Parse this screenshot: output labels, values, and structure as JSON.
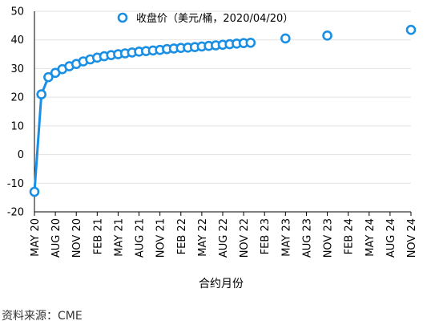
{
  "chart_data": {
    "type": "line",
    "legend": "收盘价（美元/桶，2020/04/20）",
    "xlabel": "合约月份",
    "ylabel": "",
    "ylim": [
      -20,
      50
    ],
    "y_ticks": [
      50,
      40,
      30,
      20,
      10,
      0,
      -10,
      -20
    ],
    "x_tick_labels": [
      "MAY 20",
      "AUG 20",
      "NOV 20",
      "FEB 21",
      "MAY 21",
      "AUG 21",
      "NOV 21",
      "FEB 22",
      "MAY 22",
      "AUG 22",
      "NOV 22",
      "FEB 23",
      "MAY 23",
      "AUG 23",
      "NOV 23",
      "FEB 24",
      "MAY 24",
      "AUG 24",
      "NOV 24"
    ],
    "grid": true,
    "legend_position": "top-center",
    "color": "#1a8fe3",
    "series": [
      {
        "x": [
          "MAY 20",
          "JUN 20",
          "JUL 20",
          "AUG 20",
          "SEP 20",
          "OCT 20",
          "NOV 20",
          "DEC 20",
          "JAN 21",
          "FEB 21",
          "MAR 21",
          "APR 21",
          "MAY 21",
          "JUN 21",
          "JUL 21",
          "AUG 21",
          "SEP 21",
          "OCT 21",
          "NOV 21",
          "DEC 21",
          "JAN 22",
          "FEB 22",
          "MAR 22",
          "APR 22",
          "MAY 22",
          "JUN 22",
          "JUL 22",
          "AUG 22",
          "SEP 22",
          "OCT 22",
          "NOV 22",
          "DEC 22",
          "MAY 23",
          "NOV 23",
          "NOV 24"
        ],
        "values": [
          -13,
          21,
          27,
          28.5,
          29.8,
          30.8,
          31.6,
          32.5,
          33.2,
          33.8,
          34.3,
          34.7,
          35.0,
          35.3,
          35.6,
          35.9,
          36.1,
          36.3,
          36.5,
          36.8,
          37.0,
          37.2,
          37.3,
          37.5,
          37.7,
          37.9,
          38.1,
          38.3,
          38.5,
          38.7,
          38.9,
          39.0,
          40.5,
          41.5,
          43.5
        ],
        "connected_count": 32
      }
    ],
    "source": "资料来源：CME"
  }
}
